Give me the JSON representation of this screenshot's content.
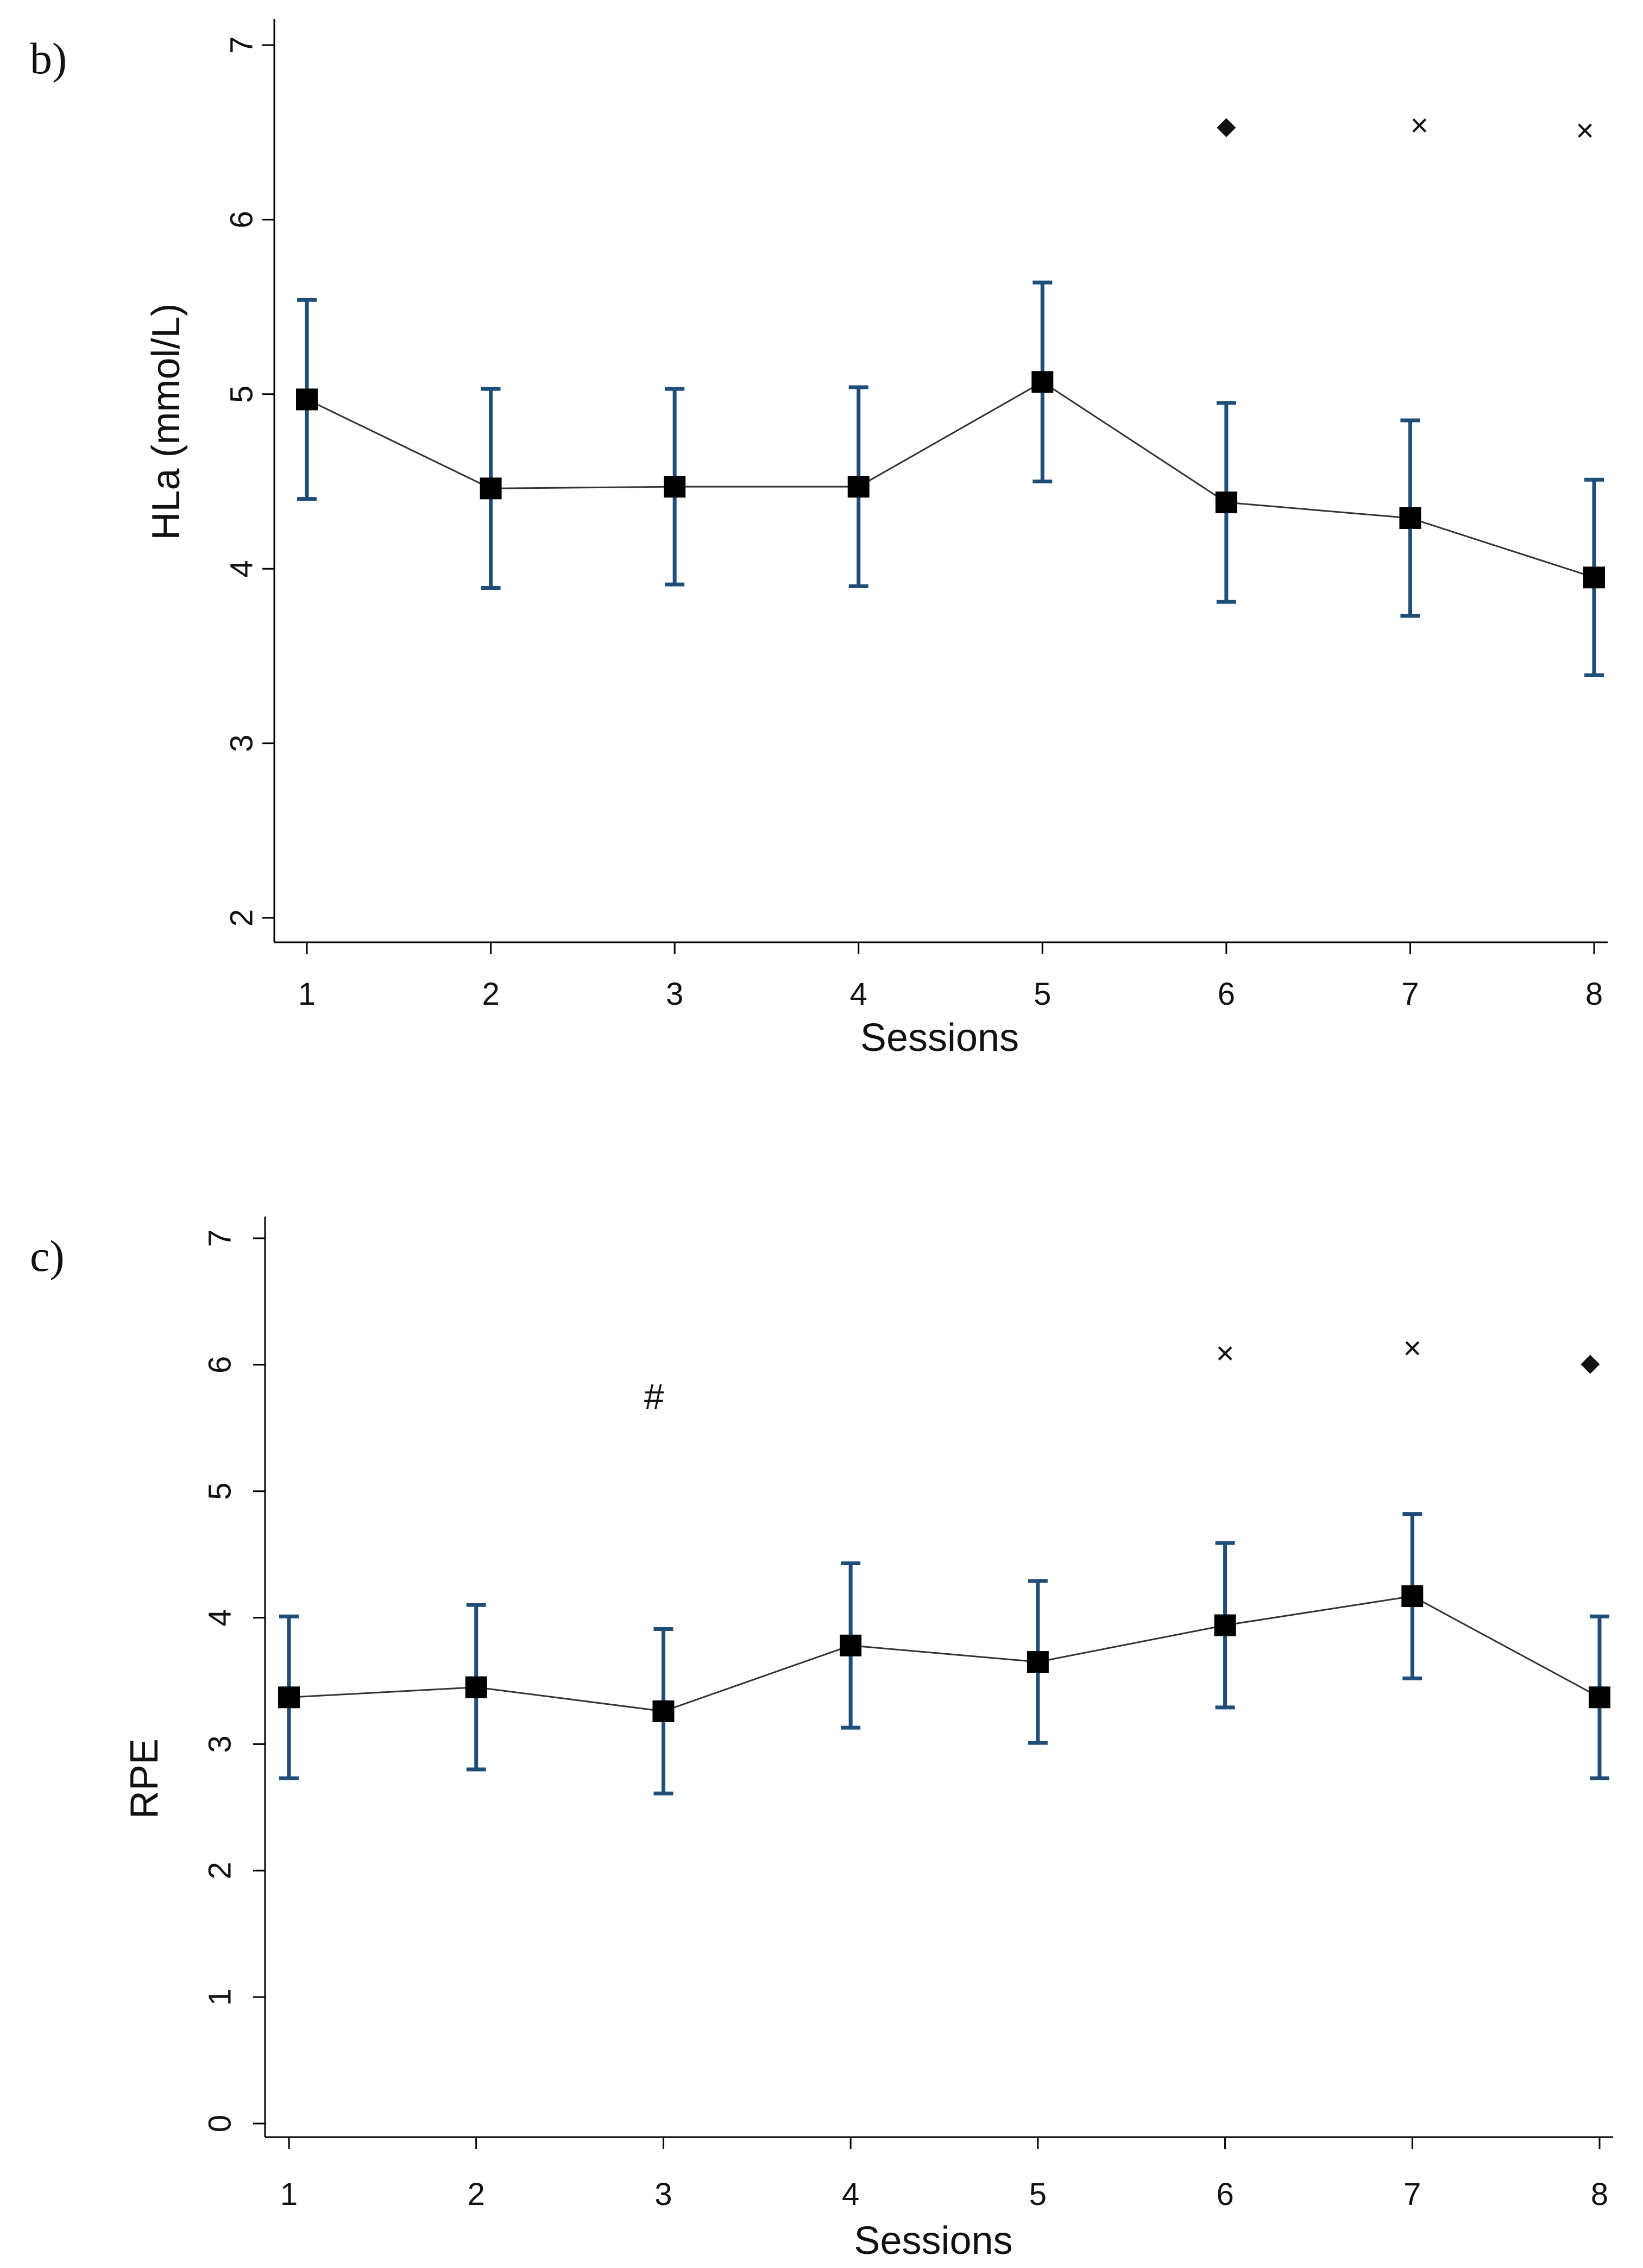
{
  "chart_data": [
    {
      "type": "line",
      "panel_label": "b)",
      "xlabel": "Sessions",
      "ylabel": "HLa (mmol/L)",
      "ylim": [
        2,
        7
      ],
      "yticks": [
        "2",
        "3",
        "4",
        "5",
        "6",
        "7"
      ],
      "categories": [
        "1",
        "2",
        "3",
        "4",
        "5",
        "6",
        "7",
        "8"
      ],
      "series": [
        {
          "name": "HLa",
          "values": [
            4.97,
            4.46,
            4.47,
            4.47,
            5.07,
            4.38,
            4.29,
            3.95
          ],
          "error": [
            0.57,
            0.57,
            0.56,
            0.57,
            0.57,
            0.57,
            0.56,
            0.56
          ]
        }
      ],
      "annotations": [
        {
          "symbol": "◆",
          "kind": "diamond",
          "x": 6,
          "y": 6.54
        },
        {
          "symbol": "×",
          "kind": "cross",
          "x": 7.05,
          "y": 6.54
        },
        {
          "symbol": "×",
          "kind": "cross",
          "x": 7.95,
          "y": 6.51
        }
      ]
    },
    {
      "type": "line",
      "panel_label": "c)",
      "xlabel": "Sessions",
      "ylabel": "RPE",
      "ylim": [
        0,
        7
      ],
      "yticks": [
        "0",
        "1",
        "2",
        "3",
        "4",
        "5",
        "6",
        "7"
      ],
      "categories": [
        "1",
        "2",
        "3",
        "4",
        "5",
        "6",
        "7",
        "8"
      ],
      "series": [
        {
          "name": "RPE",
          "values": [
            3.37,
            3.45,
            3.26,
            3.78,
            3.65,
            3.94,
            4.17,
            3.37
          ],
          "error": [
            0.64,
            0.65,
            0.65,
            0.65,
            0.64,
            0.65,
            0.65,
            0.64
          ]
        }
      ],
      "annotations": [
        {
          "symbol": "#",
          "kind": "text",
          "x": 2.95,
          "y": 5.75
        },
        {
          "symbol": "×",
          "kind": "cross",
          "x": 6,
          "y": 6.09
        },
        {
          "symbol": "×",
          "kind": "cross",
          "x": 7,
          "y": 6.13
        },
        {
          "symbol": "◆",
          "kind": "diamond",
          "x": 7.95,
          "y": 6.02
        }
      ]
    }
  ]
}
